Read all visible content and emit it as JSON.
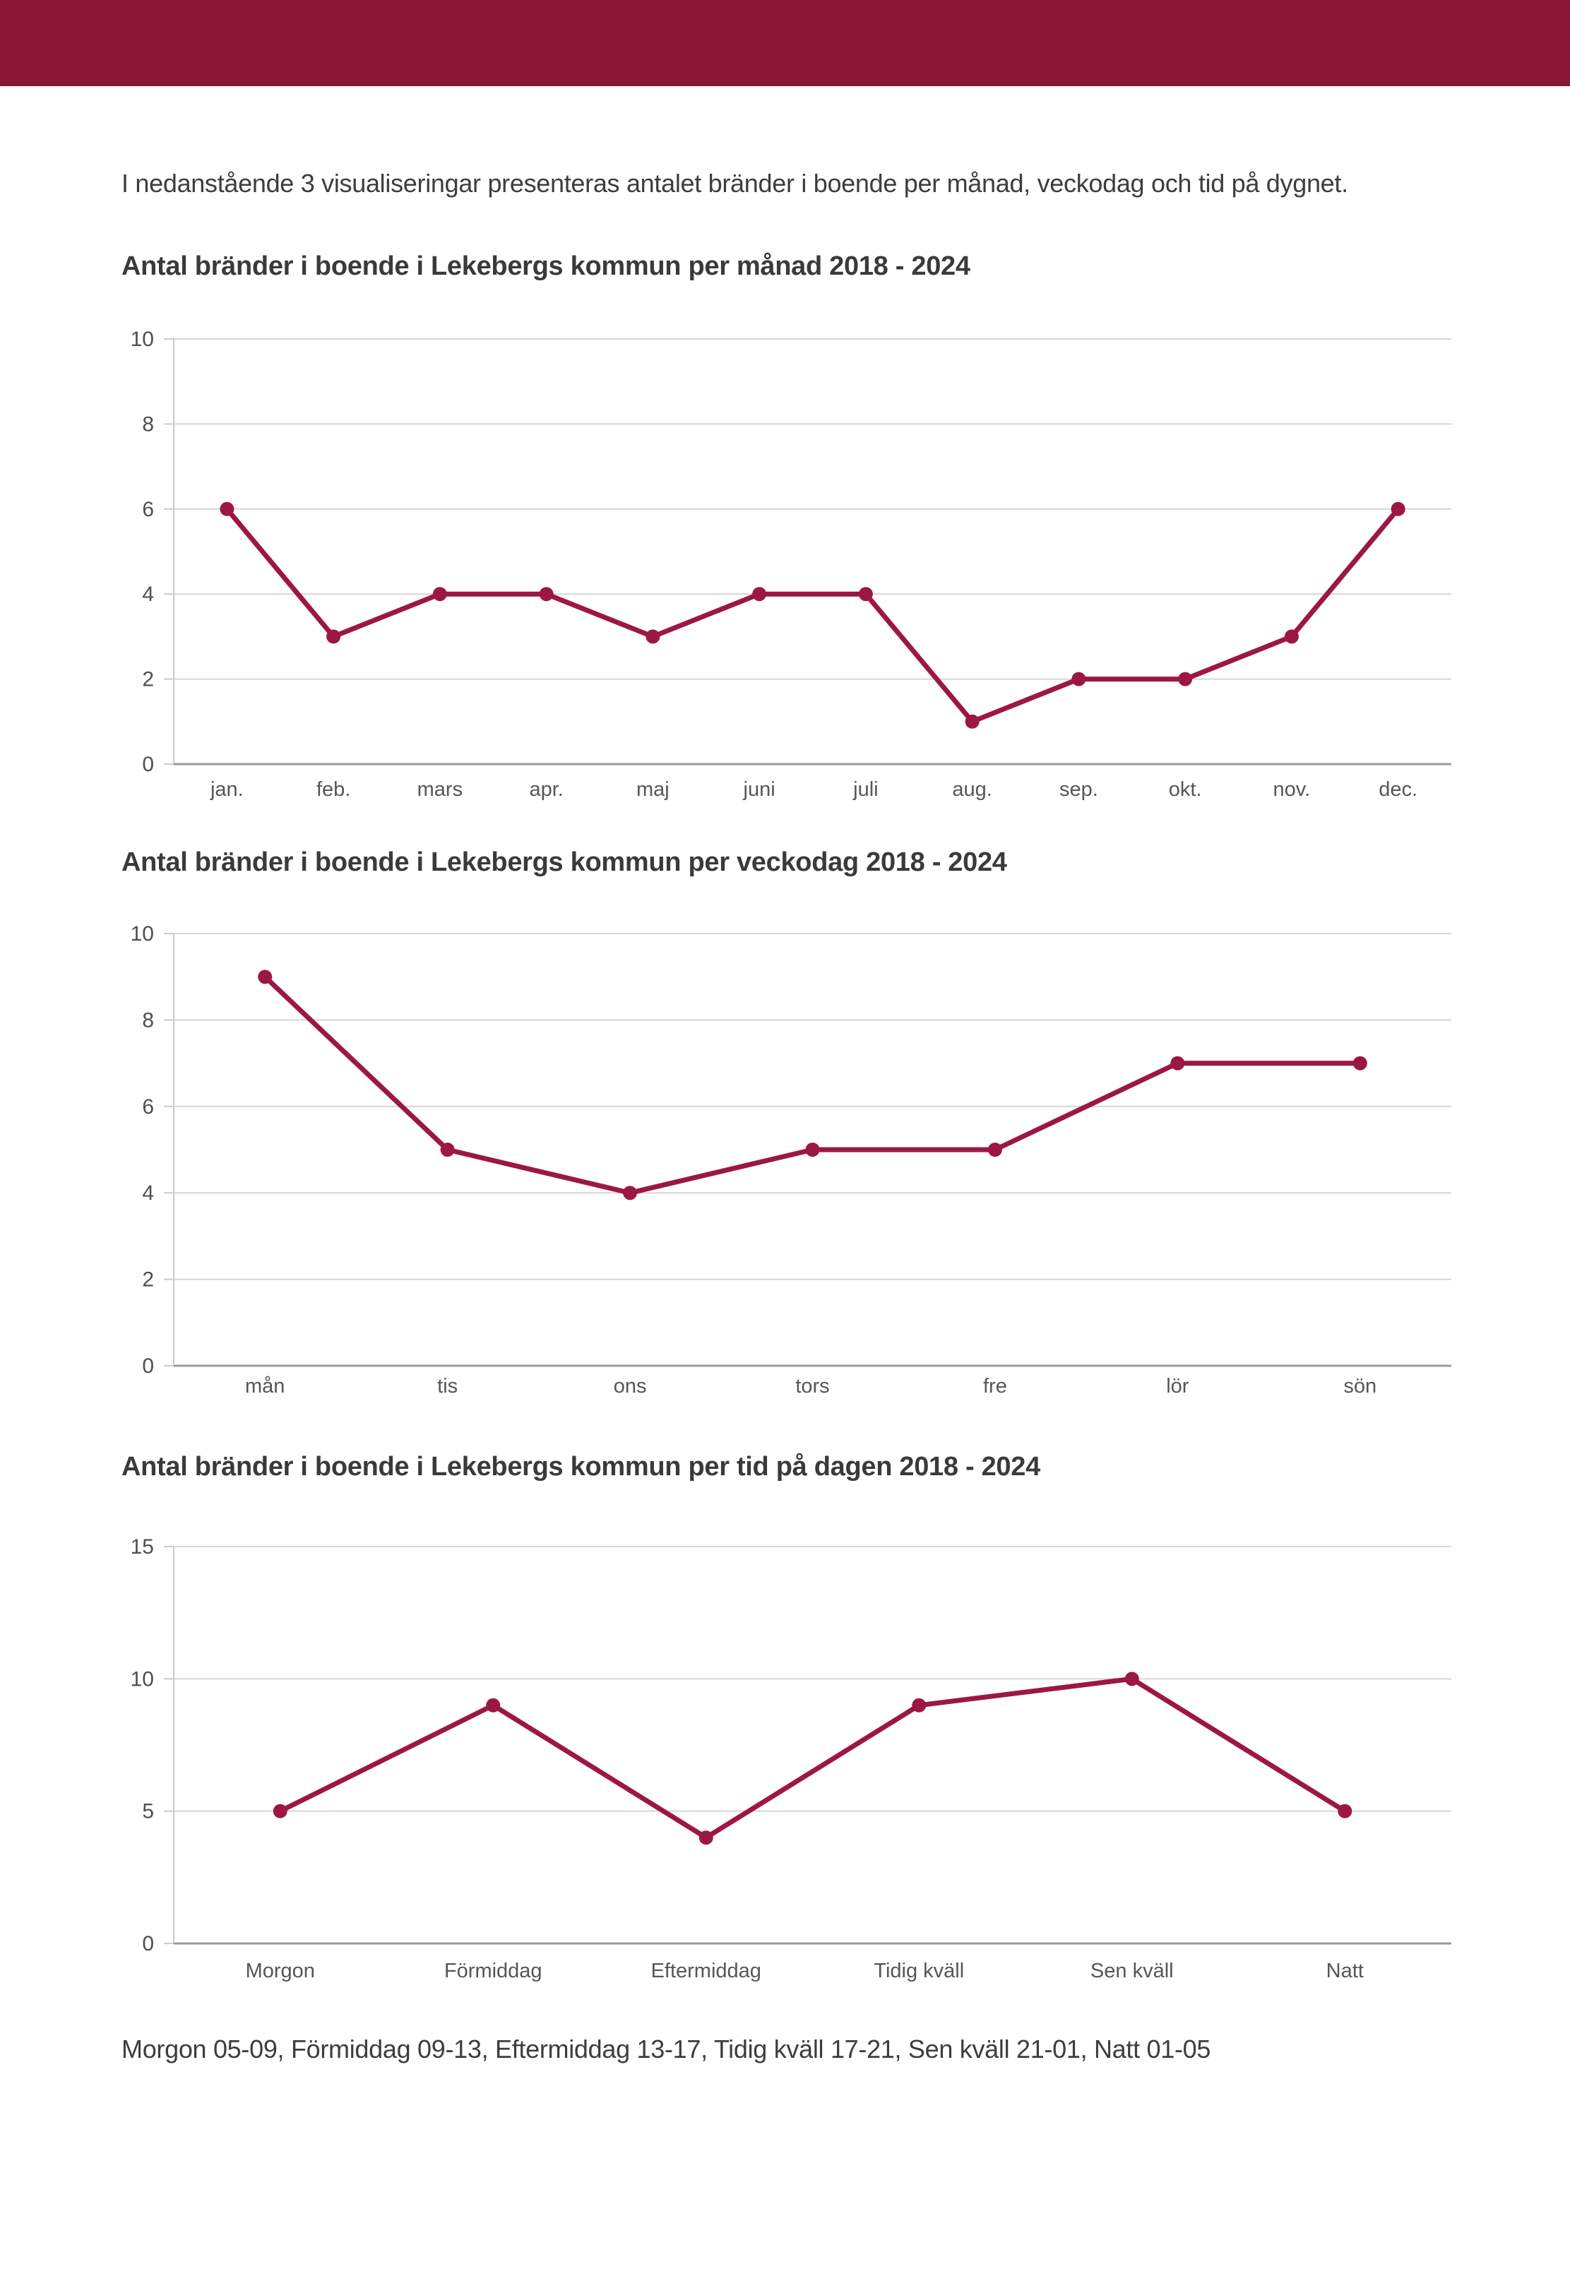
{
  "header_bar": {
    "color": "#8b1638"
  },
  "intro": {
    "text": "I nedanstående 3 visualiseringar presenteras antalet bränder i boende per månad, veckodag och tid på dygnet."
  },
  "chart_data": [
    {
      "type": "line",
      "title": "Antal bränder i boende i Lekebergs kommun per månad 2018 - 2024",
      "categories": [
        "jan.",
        "feb.",
        "mars",
        "apr.",
        "maj",
        "juni",
        "juli",
        "aug.",
        "sep.",
        "okt.",
        "nov.",
        "dec."
      ],
      "values": [
        6,
        3,
        4,
        4,
        3,
        4,
        4,
        1,
        2,
        2,
        3,
        6
      ],
      "xlabel": "",
      "ylabel": "",
      "ylim": [
        0,
        10
      ],
      "yticks": [
        0,
        2,
        4,
        6,
        8,
        10
      ],
      "grid": true,
      "legend": "none",
      "line_color": "#9c1745",
      "marker": "circle"
    },
    {
      "type": "line",
      "title": "Antal bränder i boende i Lekebergs kommun per veckodag 2018 - 2024",
      "categories": [
        "mån",
        "tis",
        "ons",
        "tors",
        "fre",
        "lör",
        "sön"
      ],
      "values": [
        9,
        5,
        4,
        5,
        5,
        7,
        7
      ],
      "xlabel": "",
      "ylabel": "",
      "ylim": [
        0,
        10
      ],
      "yticks": [
        0,
        2,
        4,
        6,
        8,
        10
      ],
      "grid": true,
      "legend": "none",
      "line_color": "#9c1745",
      "marker": "circle"
    },
    {
      "type": "line",
      "title": "Antal bränder i boende i Lekebergs kommun per tid på dagen 2018 - 2024",
      "categories": [
        "Morgon",
        "Förmiddag",
        "Eftermiddag",
        "Tidig kväll",
        "Sen kväll",
        "Natt"
      ],
      "values": [
        5,
        9,
        4,
        9,
        10,
        5
      ],
      "xlabel": "",
      "ylabel": "",
      "ylim": [
        0,
        15
      ],
      "yticks": [
        0,
        5,
        10,
        15
      ],
      "grid": true,
      "legend": "none",
      "line_color": "#9c1745",
      "marker": "circle"
    }
  ],
  "footer": {
    "note": "Morgon 05-09, Förmiddag 09-13, Eftermiddag 13-17, Tidig kväll 17-21, Sen kväll 21-01, Natt 01-05"
  },
  "style_colors": {
    "gridline": "#d6d6d6",
    "y_axis_line": "#cbcbcb",
    "x_axis_line": "#9b9b9b",
    "tick_label": "#4f4f4f",
    "category_label": "#565656"
  }
}
